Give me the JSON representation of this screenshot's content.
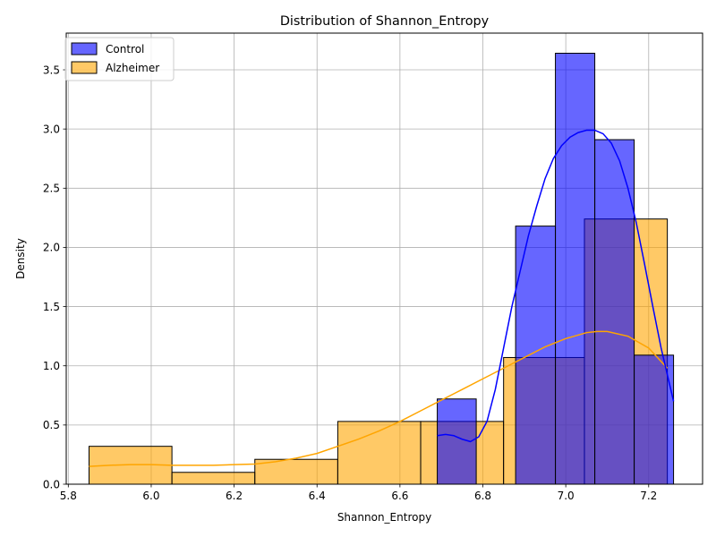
{
  "chart_data": {
    "type": "bar",
    "title": "Distribution of Shannon_Entropy",
    "xlabel": "Shannon_Entropy",
    "ylabel": "Density",
    "xlim": [
      5.795,
      7.33
    ],
    "ylim": [
      0,
      3.81
    ],
    "xticks": [
      5.8,
      6.0,
      6.2,
      6.4,
      6.6,
      6.8,
      7.0,
      7.2
    ],
    "yticks": [
      0.0,
      0.5,
      1.0,
      1.5,
      2.0,
      2.5,
      3.0,
      3.5
    ],
    "grid": true,
    "legend_position": "top-left",
    "series": [
      {
        "name": "Control",
        "color": "#0000ff",
        "bins": [
          {
            "x0": 6.69,
            "x1": 6.784,
            "value": 0.72
          },
          {
            "x0": 6.784,
            "x1": 6.879,
            "value": 0.0
          },
          {
            "x0": 6.879,
            "x1": 6.975,
            "value": 2.18
          },
          {
            "x0": 6.975,
            "x1": 7.07,
            "value": 3.64
          },
          {
            "x0": 7.07,
            "x1": 7.165,
            "value": 2.91
          },
          {
            "x0": 7.165,
            "x1": 7.26,
            "value": 1.09
          }
        ],
        "kde": [
          [
            6.69,
            0.41
          ],
          [
            6.71,
            0.42
          ],
          [
            6.73,
            0.41
          ],
          [
            6.75,
            0.38
          ],
          [
            6.77,
            0.36
          ],
          [
            6.79,
            0.4
          ],
          [
            6.81,
            0.53
          ],
          [
            6.83,
            0.8
          ],
          [
            6.85,
            1.15
          ],
          [
            6.87,
            1.5
          ],
          [
            6.89,
            1.8
          ],
          [
            6.91,
            2.1
          ],
          [
            6.93,
            2.35
          ],
          [
            6.95,
            2.58
          ],
          [
            6.97,
            2.75
          ],
          [
            6.99,
            2.86
          ],
          [
            7.01,
            2.93
          ],
          [
            7.03,
            2.97
          ],
          [
            7.05,
            2.99
          ],
          [
            7.07,
            2.99
          ],
          [
            7.09,
            2.96
          ],
          [
            7.11,
            2.88
          ],
          [
            7.13,
            2.73
          ],
          [
            7.15,
            2.5
          ],
          [
            7.17,
            2.21
          ],
          [
            7.19,
            1.86
          ],
          [
            7.21,
            1.5
          ],
          [
            7.23,
            1.15
          ],
          [
            7.25,
            0.85
          ],
          [
            7.26,
            0.7
          ]
        ]
      },
      {
        "name": "Alzheimer",
        "color": "#ffa500",
        "bins": [
          {
            "x0": 5.85,
            "x1": 6.05,
            "value": 0.32
          },
          {
            "x0": 6.05,
            "x1": 6.25,
            "value": 0.1
          },
          {
            "x0": 6.25,
            "x1": 6.45,
            "value": 0.21
          },
          {
            "x0": 6.45,
            "x1": 6.65,
            "value": 0.53
          },
          {
            "x0": 6.65,
            "x1": 6.85,
            "value": 0.53
          },
          {
            "x0": 6.85,
            "x1": 7.045,
            "value": 1.07
          },
          {
            "x0": 7.045,
            "x1": 7.245,
            "value": 2.24
          }
        ],
        "kde": [
          [
            5.85,
            0.15
          ],
          [
            5.9,
            0.16
          ],
          [
            5.95,
            0.165
          ],
          [
            6.0,
            0.165
          ],
          [
            6.05,
            0.16
          ],
          [
            6.1,
            0.16
          ],
          [
            6.15,
            0.16
          ],
          [
            6.2,
            0.165
          ],
          [
            6.25,
            0.17
          ],
          [
            6.3,
            0.19
          ],
          [
            6.35,
            0.22
          ],
          [
            6.4,
            0.26
          ],
          [
            6.45,
            0.32
          ],
          [
            6.5,
            0.38
          ],
          [
            6.55,
            0.45
          ],
          [
            6.6,
            0.53
          ],
          [
            6.65,
            0.62
          ],
          [
            6.7,
            0.71
          ],
          [
            6.75,
            0.8
          ],
          [
            6.8,
            0.89
          ],
          [
            6.85,
            0.98
          ],
          [
            6.9,
            1.07
          ],
          [
            6.95,
            1.16
          ],
          [
            7.0,
            1.23
          ],
          [
            7.05,
            1.28
          ],
          [
            7.075,
            1.29
          ],
          [
            7.1,
            1.29
          ],
          [
            7.15,
            1.25
          ],
          [
            7.2,
            1.15
          ],
          [
            7.245,
            0.98
          ]
        ]
      }
    ]
  }
}
